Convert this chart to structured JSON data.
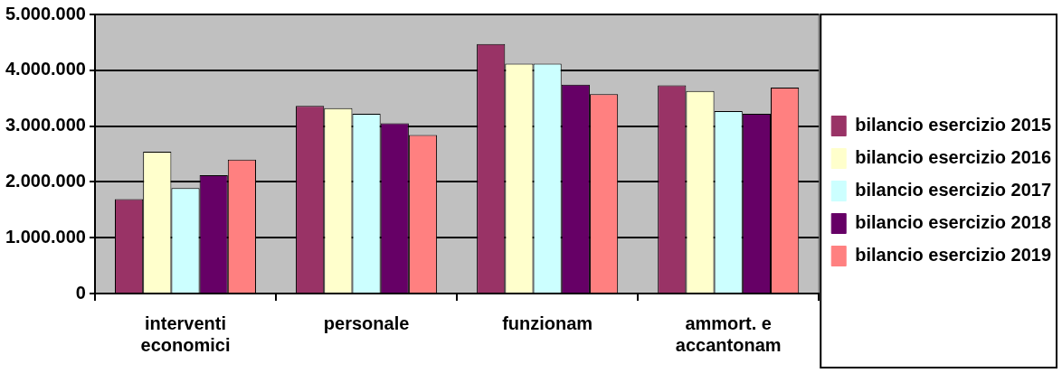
{
  "chart_data": {
    "type": "bar",
    "categories": [
      "interventi economici",
      "personale",
      "funzionam",
      "ammort. e accantonam"
    ],
    "series": [
      {
        "name": "bilancio esercizio 2015",
        "color": "#993366",
        "values": [
          1690000,
          3360000,
          4470000,
          3730000
        ]
      },
      {
        "name": "bilancio esercizio 2016",
        "color": "#ffffcc",
        "values": [
          2540000,
          3320000,
          4120000,
          3630000
        ]
      },
      {
        "name": "bilancio esercizio 2017",
        "color": "#ccffff",
        "values": [
          1890000,
          3220000,
          4120000,
          3270000
        ]
      },
      {
        "name": "bilancio esercizio 2018",
        "color": "#660066",
        "values": [
          2120000,
          3050000,
          3740000,
          3220000
        ]
      },
      {
        "name": "bilancio esercizio 2019",
        "color": "#ff8080",
        "values": [
          2400000,
          2840000,
          3570000,
          3690000
        ]
      }
    ],
    "ylim": [
      0,
      5000000
    ],
    "yticks": [
      {
        "value": 0,
        "label": "0"
      },
      {
        "value": 1000000,
        "label": "1.000.000"
      },
      {
        "value": 2000000,
        "label": "2.000.000"
      },
      {
        "value": 3000000,
        "label": "3.000.000"
      },
      {
        "value": 4000000,
        "label": "4.000.000"
      },
      {
        "value": 5000000,
        "label": "5.000.000"
      }
    ],
    "grid": "y",
    "legend": "right"
  }
}
